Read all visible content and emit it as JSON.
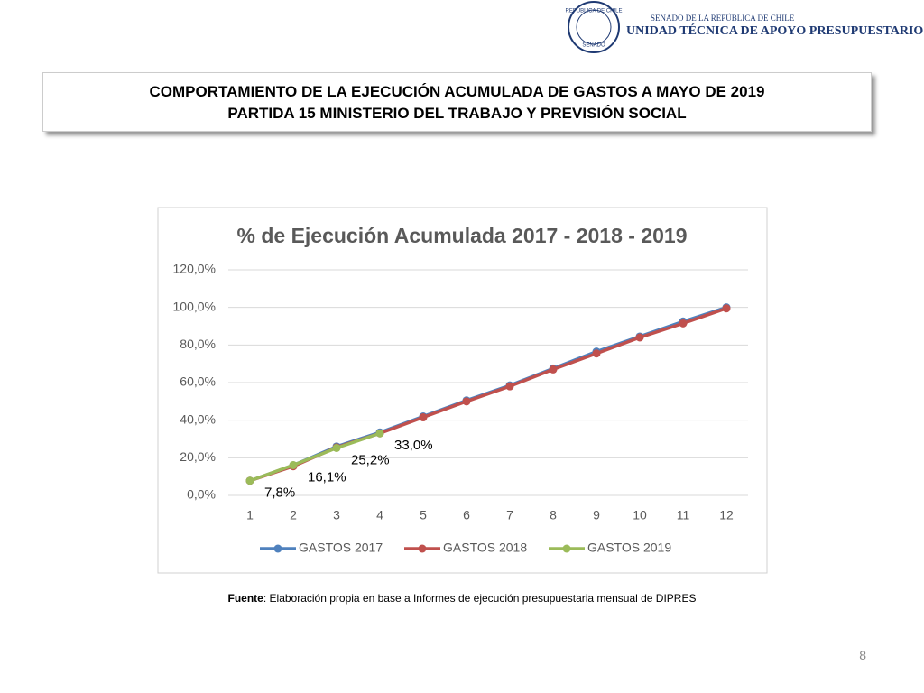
{
  "header": {
    "seal_top": "REPÚBLICA DE CHILE",
    "seal_bottom": "SENADO",
    "line1": "SENADO DE LA REPÚBLICA DE CHILE",
    "line2": "UNIDAD TÉCNICA DE APOYO PRESUPUESTARIO"
  },
  "slide_title": [
    "COMPORTAMIENTO DE LA EJECUCIÓN ACUMULADA DE GASTOS A MAYO DE 2019",
    "PARTIDA 15 MINISTERIO DEL TRABAJO Y PREVISIÓN SOCIAL"
  ],
  "chart_data": {
    "type": "line",
    "title": "% de Ejecución Acumulada 2017 - 2018 - 2019",
    "categories": [
      "1",
      "2",
      "3",
      "4",
      "5",
      "6",
      "7",
      "8",
      "9",
      "10",
      "11",
      "12"
    ],
    "series": [
      {
        "name": "GASTOS 2017",
        "color": "#4f81bd",
        "values": [
          7.8,
          16.0,
          26.0,
          33.5,
          42.0,
          50.5,
          58.5,
          67.5,
          76.5,
          84.5,
          92.5,
          100
        ]
      },
      {
        "name": "GASTOS 2018",
        "color": "#c0504d",
        "values": [
          7.8,
          15.5,
          25.5,
          33.0,
          41.5,
          50.0,
          58.0,
          67.0,
          75.5,
          84.0,
          91.5,
          99.5
        ]
      },
      {
        "name": "GASTOS 2019",
        "color": "#9bbb59",
        "values": [
          7.8,
          16.1,
          25.2,
          33.0,
          null,
          null,
          null,
          null,
          null,
          null,
          null,
          null
        ],
        "value_labels": [
          "7,8%",
          "16,1%",
          "25,2%",
          "33,0%",
          null,
          null,
          null,
          null,
          null,
          null,
          null,
          null
        ]
      }
    ],
    "ylim": [
      0,
      120
    ],
    "yticks": [
      {
        "value": 0,
        "label": "0,0%"
      },
      {
        "value": 20,
        "label": "20,0%"
      },
      {
        "value": 40,
        "label": "40,0%"
      },
      {
        "value": 60,
        "label": "60,0%"
      },
      {
        "value": 80,
        "label": "80,0%"
      },
      {
        "value": 100,
        "label": "100,0%"
      },
      {
        "value": 120,
        "label": "120,0%"
      }
    ],
    "grid": true,
    "legend": "bottom"
  },
  "source": {
    "label": "Fuente",
    "text": ": Elaboración propia en base  a Informes de ejecución presupuestaria mensual de DIPRES"
  },
  "page_number": "8"
}
